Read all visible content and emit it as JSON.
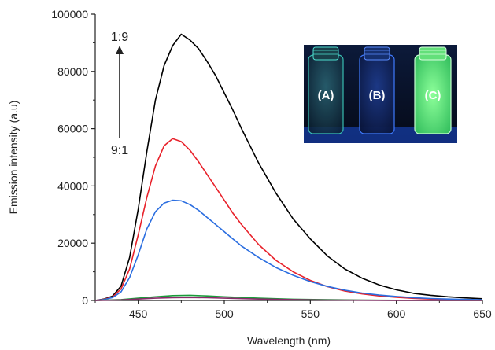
{
  "chart_data": {
    "type": "line",
    "title": "",
    "xlabel": "Wavelength (nm)",
    "ylabel": "Emission intensity (a.u)",
    "xlim": [
      425,
      650
    ],
    "ylim": [
      0,
      100000
    ],
    "x_ticks": [
      450,
      500,
      550,
      600,
      650
    ],
    "y_ticks": [
      0,
      20000,
      40000,
      60000,
      80000,
      100000
    ],
    "grid": false,
    "annotations": {
      "arrow_top": "1:9",
      "arrow_bottom": "9:1"
    },
    "inset": {
      "labels": [
        "(A)",
        "(B)",
        "(C)"
      ],
      "glow_colors": [
        "#2ec7b0",
        "#2a6cff",
        "#5dff7a"
      ]
    },
    "series": [
      {
        "color": "#000000",
        "x": [
          425,
          430,
          435,
          440,
          445,
          450,
          455,
          460,
          465,
          470,
          475,
          480,
          485,
          490,
          495,
          500,
          505,
          510,
          520,
          530,
          540,
          550,
          560,
          570,
          580,
          590,
          600,
          610,
          620,
          630,
          640,
          650
        ],
        "y": [
          0,
          500,
          1500,
          5000,
          15000,
          32000,
          52000,
          70000,
          82000,
          89000,
          93000,
          91000,
          88000,
          83500,
          78500,
          72500,
          66500,
          60000,
          48000,
          37500,
          28500,
          21500,
          15500,
          11000,
          7800,
          5400,
          3700,
          2500,
          1800,
          1300,
          900,
          600
        ]
      },
      {
        "color": "#e8222b",
        "x": [
          425,
          430,
          435,
          440,
          445,
          450,
          455,
          460,
          465,
          470,
          475,
          480,
          485,
          490,
          495,
          500,
          505,
          510,
          520,
          530,
          540,
          550,
          560,
          570,
          580,
          590,
          600,
          610,
          620,
          630,
          640,
          650
        ],
        "y": [
          0,
          400,
          1200,
          4000,
          11000,
          23000,
          36000,
          47000,
          54000,
          56500,
          55500,
          52500,
          48500,
          44000,
          39500,
          35000,
          30500,
          26500,
          19500,
          14000,
          10000,
          7000,
          4800,
          3300,
          2300,
          1600,
          1100,
          750,
          500,
          350,
          250,
          200
        ]
      },
      {
        "color": "#2b6ee0",
        "x": [
          425,
          430,
          435,
          440,
          445,
          450,
          455,
          460,
          465,
          470,
          475,
          480,
          485,
          490,
          495,
          500,
          505,
          510,
          520,
          530,
          540,
          550,
          560,
          570,
          580,
          590,
          600,
          610,
          620,
          630,
          640,
          650
        ],
        "y": [
          0,
          300,
          1000,
          3000,
          8000,
          16000,
          25000,
          31000,
          34000,
          35000,
          34800,
          33500,
          31500,
          29000,
          26500,
          24000,
          21500,
          19000,
          15000,
          11500,
          8800,
          6600,
          4900,
          3600,
          2600,
          1900,
          1400,
          1000,
          700,
          500,
          350,
          250
        ]
      },
      {
        "color": "#1a9a3a",
        "x": [
          425,
          440,
          450,
          460,
          470,
          480,
          490,
          500,
          520,
          540,
          560,
          580,
          600,
          620,
          650
        ],
        "y": [
          0,
          300,
          800,
          1300,
          1700,
          1800,
          1600,
          1300,
          800,
          450,
          250,
          120,
          60,
          30,
          0
        ]
      },
      {
        "color": "#8a2a6a",
        "x": [
          425,
          440,
          450,
          460,
          470,
          480,
          490,
          500,
          520,
          540,
          560,
          580,
          600,
          620,
          650
        ],
        "y": [
          0,
          200,
          500,
          800,
          1000,
          1050,
          950,
          800,
          500,
          300,
          150,
          80,
          40,
          20,
          0
        ]
      }
    ]
  }
}
